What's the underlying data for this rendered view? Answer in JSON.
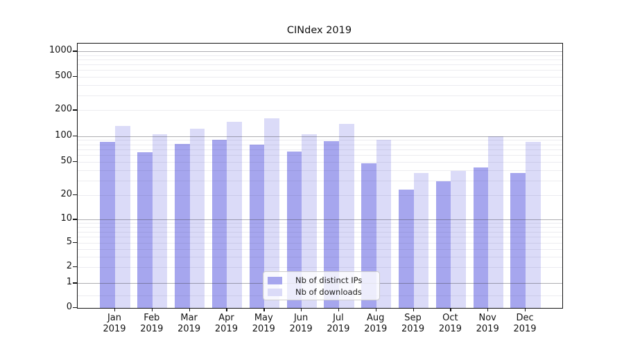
{
  "window": {
    "kind": "chart-figure"
  },
  "chart_data": {
    "type": "bar",
    "title": "CINdex 2019",
    "x_categories": [
      "Jan",
      "Feb",
      "Mar",
      "Apr",
      "May",
      "Jun",
      "Jul",
      "Aug",
      "Sep",
      "Oct",
      "Nov",
      "Dec"
    ],
    "x_year_label": "2019",
    "xlabel": "",
    "ylabel": "",
    "y_axis": {
      "scale": "symlog",
      "ticks": [
        0,
        1,
        2,
        5,
        10,
        20,
        50,
        100,
        200,
        500,
        1000
      ],
      "grid": "on",
      "major_grid_at": [
        1,
        10,
        100,
        1000
      ]
    },
    "series": [
      {
        "name": "Nb of distinct IPs",
        "color": "#a6a6ee",
        "values": [
          85,
          65,
          81,
          91,
          79,
          66,
          88,
          48,
          23,
          29,
          43,
          37
        ]
      },
      {
        "name": "Nb of downloads",
        "color": "#dbdbf8",
        "values": [
          132,
          105,
          121,
          146,
          160,
          105,
          140,
          90,
          37,
          39,
          100,
          85
        ]
      }
    ],
    "legend_position": "lower center"
  }
}
